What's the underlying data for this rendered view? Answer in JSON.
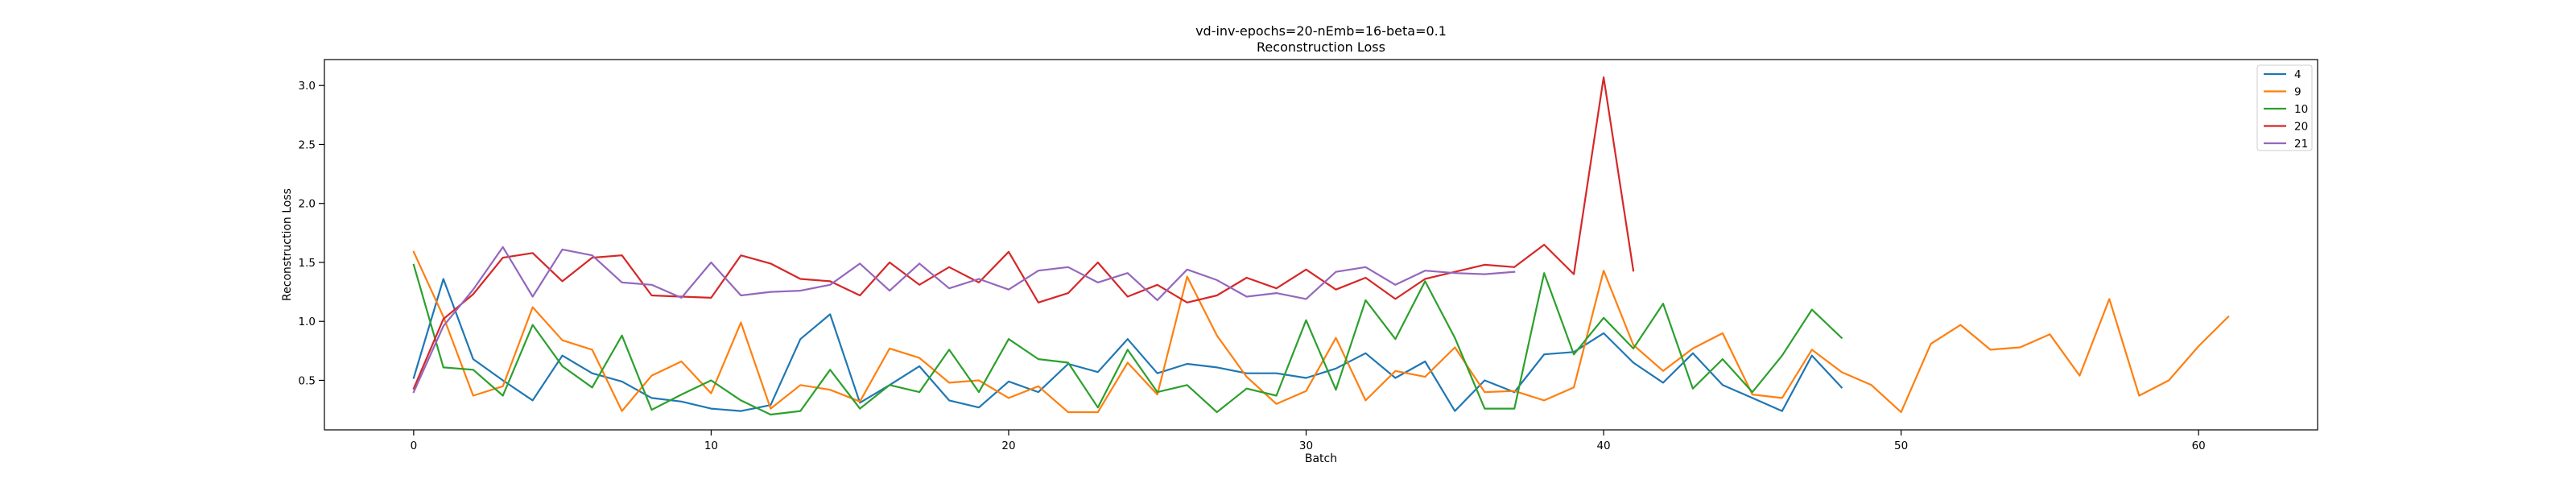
{
  "chart_data": {
    "type": "line",
    "title": "vd-inv-epochs=20-nEmb=16-beta=0.1",
    "subtitle": "Reconstruction Loss",
    "xlabel": "Batch",
    "ylabel": "Reconstruction Loss",
    "xlim": [
      -3,
      64
    ],
    "ylim": [
      0.08,
      3.22
    ],
    "xticks": [
      0,
      10,
      20,
      30,
      40,
      50,
      60
    ],
    "yticks": [
      0.5,
      1.0,
      1.5,
      2.0,
      2.5,
      3.0
    ],
    "ytick_labels": [
      "0.5",
      "1.0",
      "1.5",
      "2.0",
      "2.5",
      "3.0"
    ],
    "grid": false,
    "legend_position": "top-right",
    "series": [
      {
        "name": "4",
        "color": "#1f77b4",
        "values": [
          0.52,
          1.36,
          0.68,
          0.5,
          0.33,
          0.71,
          0.56,
          0.49,
          0.35,
          0.32,
          0.26,
          0.24,
          0.29,
          0.85,
          1.06,
          0.31,
          0.46,
          0.62,
          0.33,
          0.27,
          0.49,
          0.4,
          0.64,
          0.57,
          0.85,
          0.56,
          0.64,
          0.61,
          0.56,
          0.56,
          0.52,
          0.6,
          0.73,
          0.52,
          0.66,
          0.24,
          0.5,
          0.4,
          0.72,
          0.74,
          0.9,
          0.65,
          0.48,
          0.73,
          0.46,
          0.35,
          0.24,
          0.71,
          0.44
        ]
      },
      {
        "name": "9",
        "color": "#ff7f0e",
        "values": [
          1.59,
          1.04,
          0.37,
          0.45,
          1.12,
          0.84,
          0.76,
          0.24,
          0.54,
          0.66,
          0.39,
          0.99,
          0.26,
          0.46,
          0.42,
          0.32,
          0.77,
          0.69,
          0.48,
          0.5,
          0.35,
          0.45,
          0.23,
          0.23,
          0.65,
          0.38,
          1.38,
          0.88,
          0.53,
          0.3,
          0.41,
          0.86,
          0.33,
          0.58,
          0.53,
          0.78,
          0.4,
          0.41,
          0.33,
          0.44,
          1.43,
          0.8,
          0.58,
          0.77,
          0.9,
          0.38,
          0.35,
          0.76,
          0.57,
          0.46,
          0.23,
          0.81,
          0.97,
          0.76,
          0.78,
          0.89,
          0.54,
          1.19,
          0.37,
          0.5,
          0.79,
          1.04
        ]
      },
      {
        "name": "10",
        "color": "#2ca02c",
        "values": [
          1.48,
          0.61,
          0.59,
          0.37,
          0.97,
          0.62,
          0.44,
          0.88,
          0.25,
          0.38,
          0.5,
          0.33,
          0.21,
          0.24,
          0.59,
          0.26,
          0.46,
          0.4,
          0.76,
          0.4,
          0.85,
          0.68,
          0.65,
          0.27,
          0.76,
          0.4,
          0.46,
          0.23,
          0.43,
          0.37,
          1.01,
          0.42,
          1.18,
          0.85,
          1.34,
          0.86,
          0.26,
          0.26,
          1.41,
          0.72,
          1.03,
          0.77,
          1.15,
          0.43,
          0.68,
          0.4,
          0.71,
          1.1,
          0.86
        ]
      },
      {
        "name": "20",
        "color": "#d62728",
        "values": [
          0.43,
          1.02,
          1.23,
          1.54,
          1.58,
          1.34,
          1.54,
          1.56,
          1.22,
          1.21,
          1.2,
          1.56,
          1.49,
          1.36,
          1.34,
          1.22,
          1.5,
          1.31,
          1.46,
          1.33,
          1.59,
          1.16,
          1.24,
          1.5,
          1.21,
          1.31,
          1.16,
          1.22,
          1.37,
          1.28,
          1.44,
          1.27,
          1.37,
          1.19,
          1.36,
          1.42,
          1.48,
          1.46,
          1.65,
          1.4,
          3.07,
          1.43
        ]
      },
      {
        "name": "21",
        "color": "#9467bd",
        "values": [
          0.4,
          0.96,
          1.27,
          1.63,
          1.21,
          1.61,
          1.56,
          1.33,
          1.31,
          1.2,
          1.5,
          1.22,
          1.25,
          1.26,
          1.31,
          1.49,
          1.26,
          1.49,
          1.28,
          1.36,
          1.27,
          1.43,
          1.46,
          1.33,
          1.41,
          1.18,
          1.44,
          1.35,
          1.21,
          1.24,
          1.19,
          1.42,
          1.46,
          1.31,
          1.43,
          1.41,
          1.4,
          1.42
        ]
      }
    ]
  }
}
